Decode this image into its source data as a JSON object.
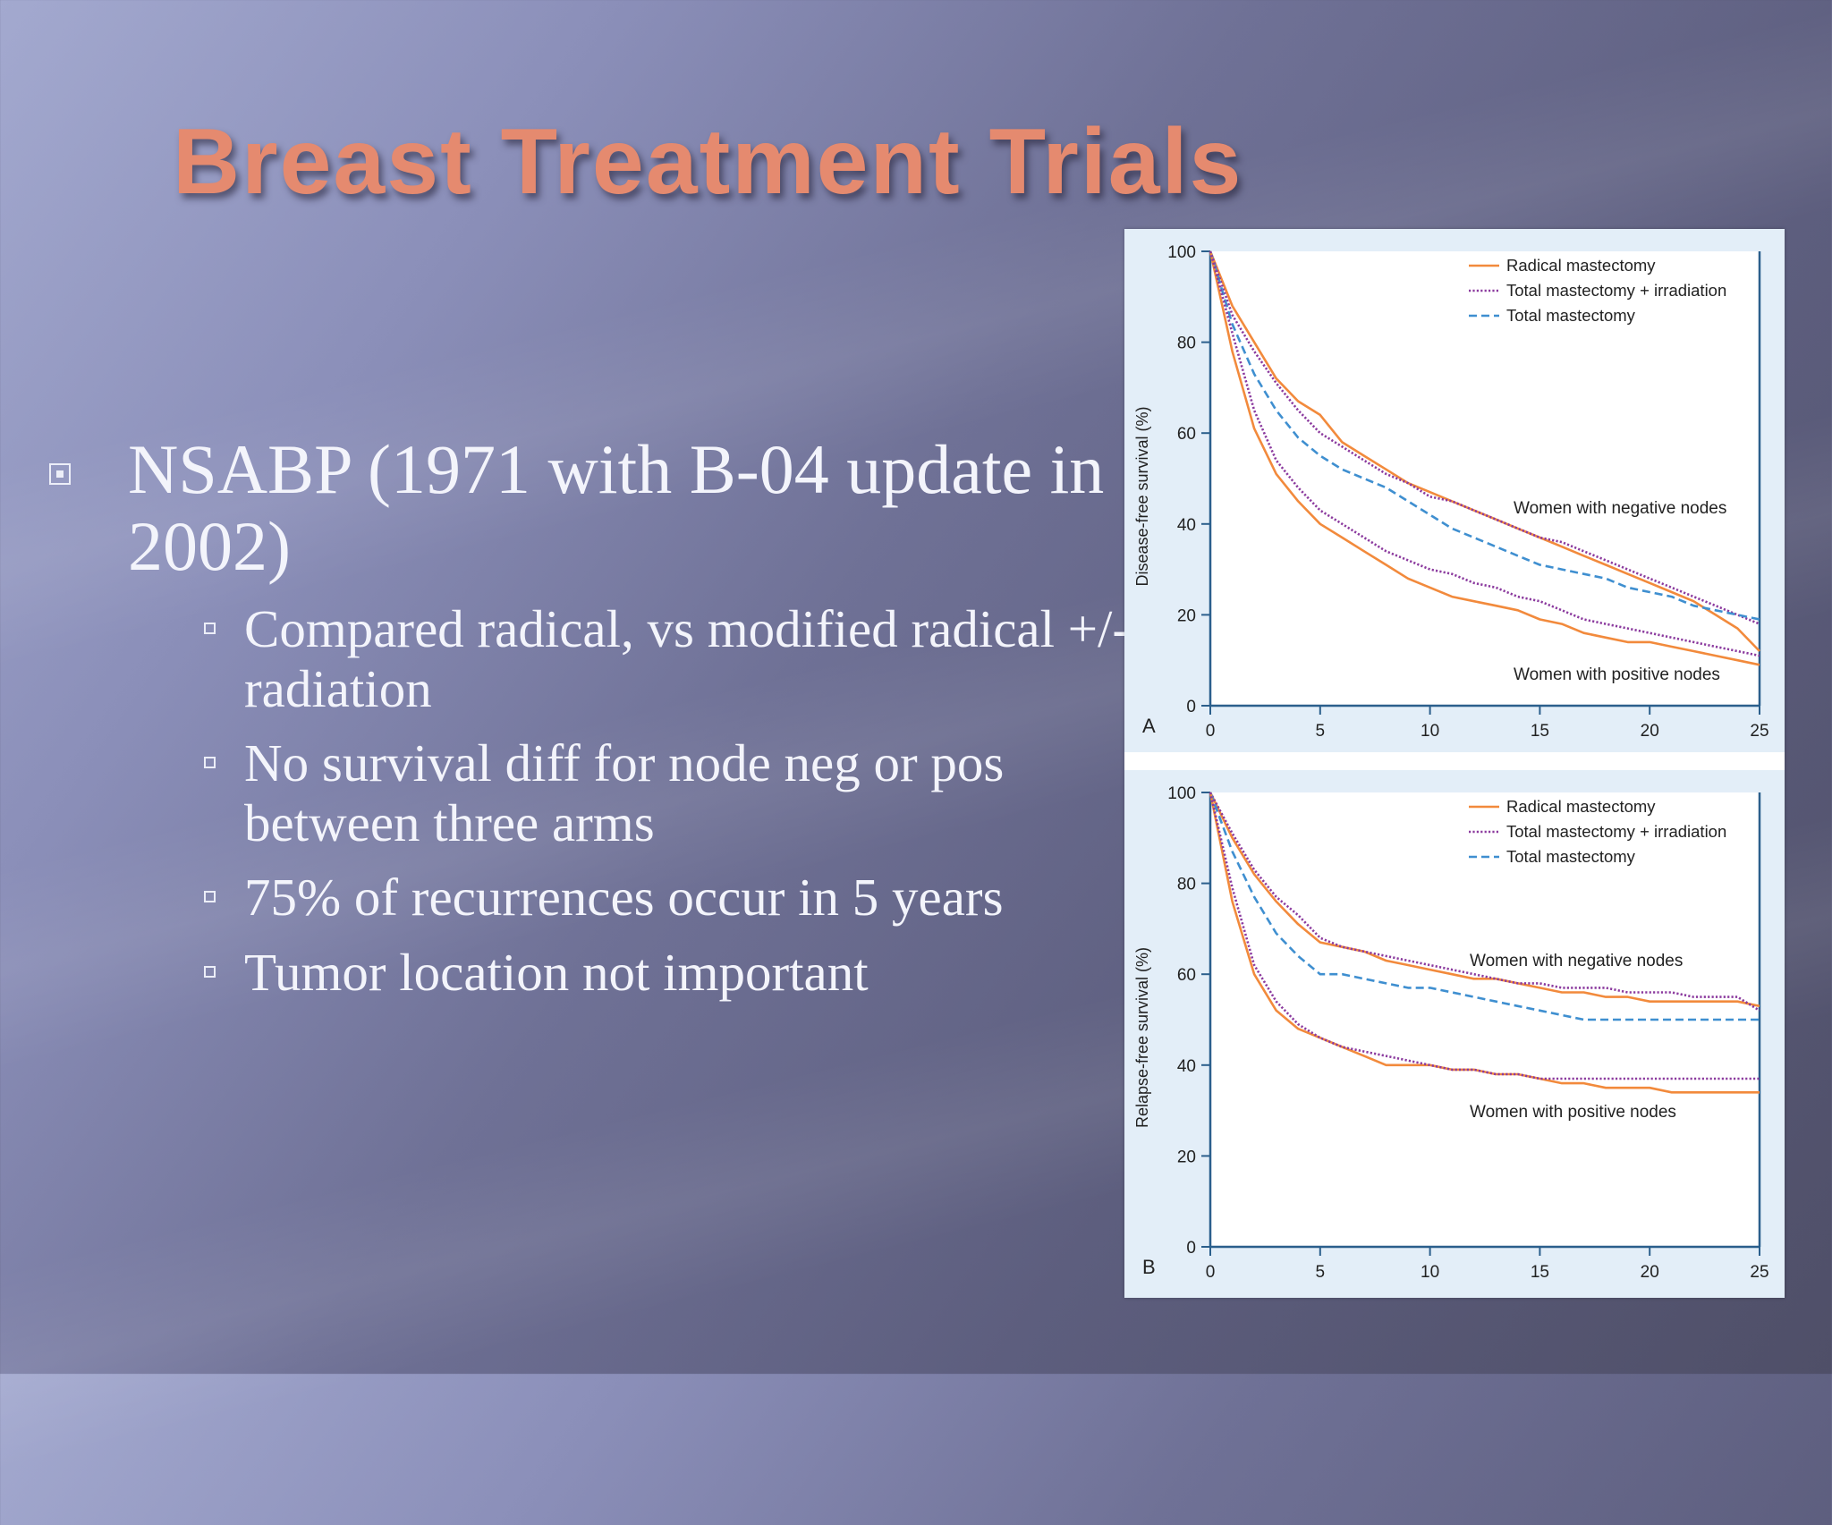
{
  "slide": {
    "title": "Breast Treatment Trials",
    "main_bullet": "NSABP (1971 with B-04 update in 2002)",
    "sub_bullets": [
      "Compared radical, vs modified radical +/- radiation",
      "No survival diff for node neg or pos between three arms",
      "75% of recurrences occur in 5 years",
      "Tumor location not important"
    ]
  },
  "colors": {
    "radical": "#f28a3c",
    "total_irradiation": "#8b3a9e",
    "total": "#3f8fd0",
    "axis": "#2b5f8c",
    "title": "#e58a6f"
  },
  "chart_data": [
    {
      "type": "line",
      "panel_label": "A",
      "ylabel": "Disease-free survival (%)",
      "xlabel": "",
      "xlim": [
        0,
        25
      ],
      "ylim": [
        0,
        100
      ],
      "xticks": [
        0,
        5,
        10,
        15,
        20,
        25
      ],
      "yticks": [
        0,
        20,
        40,
        60,
        80,
        100
      ],
      "legend_position": "top-right",
      "legend": [
        "Radical mastectomy",
        "Total mastectomy + irradiation",
        "Total mastectomy"
      ],
      "annotations": [
        "Women with negative nodes",
        "Women with positive nodes"
      ],
      "x": [
        0,
        1,
        2,
        3,
        4,
        5,
        6,
        7,
        8,
        9,
        10,
        11,
        12,
        13,
        14,
        15,
        16,
        17,
        18,
        19,
        20,
        21,
        22,
        23,
        24,
        25
      ],
      "series": [
        {
          "name": "Radical mastectomy",
          "group": "Women with negative nodes",
          "style": "solid",
          "values": [
            100,
            88,
            80,
            72,
            67,
            64,
            58,
            55,
            52,
            49,
            47,
            45,
            43,
            41,
            39,
            37,
            35,
            33,
            31,
            29,
            27,
            25,
            23,
            20,
            17,
            12
          ]
        },
        {
          "name": "Total mastectomy + irradiation",
          "group": "Women with negative nodes",
          "style": "dotted",
          "values": [
            100,
            86,
            78,
            71,
            65,
            60,
            57,
            54,
            51,
            49,
            46,
            45,
            43,
            41,
            39,
            37,
            36,
            34,
            32,
            30,
            28,
            26,
            24,
            22,
            20,
            18
          ]
        },
        {
          "name": "Total mastectomy",
          "group": "Women with negative nodes",
          "style": "dashed",
          "values": [
            100,
            84,
            73,
            65,
            59,
            55,
            52,
            50,
            48,
            45,
            42,
            39,
            37,
            35,
            33,
            31,
            30,
            29,
            28,
            26,
            25,
            24,
            22,
            21,
            20,
            19
          ]
        },
        {
          "name": "Radical mastectomy",
          "group": "Women with positive nodes",
          "style": "solid",
          "values": [
            100,
            78,
            61,
            51,
            45,
            40,
            37,
            34,
            31,
            28,
            26,
            24,
            23,
            22,
            21,
            19,
            18,
            16,
            15,
            14,
            14,
            13,
            12,
            11,
            10,
            9
          ]
        },
        {
          "name": "Total mastectomy + irradiation",
          "group": "Women with positive nodes",
          "style": "dotted",
          "values": [
            100,
            82,
            65,
            54,
            48,
            43,
            40,
            37,
            34,
            32,
            30,
            29,
            27,
            26,
            24,
            23,
            21,
            19,
            18,
            17,
            16,
            15,
            14,
            13,
            12,
            11
          ]
        }
      ]
    },
    {
      "type": "line",
      "panel_label": "B",
      "ylabel": "Relapse-free survival (%)",
      "xlabel": "",
      "xlim": [
        0,
        25
      ],
      "ylim": [
        0,
        100
      ],
      "xticks": [
        0,
        5,
        10,
        15,
        20,
        25
      ],
      "yticks": [
        0,
        20,
        40,
        60,
        80,
        100
      ],
      "legend_position": "top-right",
      "legend": [
        "Radical mastectomy",
        "Total mastectomy + irradiation",
        "Total mastectomy"
      ],
      "annotations": [
        "Women with negative nodes",
        "Women with positive nodes"
      ],
      "x": [
        0,
        1,
        2,
        3,
        4,
        5,
        6,
        7,
        8,
        9,
        10,
        11,
        12,
        13,
        14,
        15,
        16,
        17,
        18,
        19,
        20,
        21,
        22,
        23,
        24,
        25
      ],
      "series": [
        {
          "name": "Radical mastectomy",
          "group": "Women with negative nodes",
          "style": "solid",
          "values": [
            100,
            90,
            82,
            76,
            71,
            67,
            66,
            65,
            63,
            62,
            61,
            60,
            59,
            59,
            58,
            57,
            56,
            56,
            55,
            55,
            54,
            54,
            54,
            54,
            54,
            53
          ]
        },
        {
          "name": "Total mastectomy + irradiation",
          "group": "Women with negative nodes",
          "style": "dotted",
          "values": [
            100,
            91,
            83,
            77,
            73,
            68,
            66,
            65,
            64,
            63,
            62,
            61,
            60,
            59,
            58,
            58,
            57,
            57,
            57,
            56,
            56,
            56,
            55,
            55,
            55,
            52
          ]
        },
        {
          "name": "Total mastectomy",
          "group": "Women with negative nodes",
          "style": "dashed",
          "values": [
            100,
            87,
            77,
            69,
            64,
            60,
            60,
            59,
            58,
            57,
            57,
            56,
            55,
            54,
            53,
            52,
            51,
            50,
            50,
            50,
            50,
            50,
            50,
            50,
            50,
            50
          ]
        },
        {
          "name": "Radical mastectomy",
          "group": "Women with positive nodes",
          "style": "solid",
          "values": [
            100,
            76,
            60,
            52,
            48,
            46,
            44,
            42,
            40,
            40,
            40,
            39,
            39,
            38,
            38,
            37,
            36,
            36,
            35,
            35,
            35,
            34,
            34,
            34,
            34,
            34
          ]
        },
        {
          "name": "Total mastectomy + irradiation",
          "group": "Women with positive nodes",
          "style": "dotted",
          "values": [
            100,
            79,
            62,
            54,
            49,
            46,
            44,
            43,
            42,
            41,
            40,
            39,
            39,
            38,
            38,
            37,
            37,
            37,
            37,
            37,
            37,
            37,
            37,
            37,
            37,
            37
          ]
        }
      ]
    }
  ]
}
